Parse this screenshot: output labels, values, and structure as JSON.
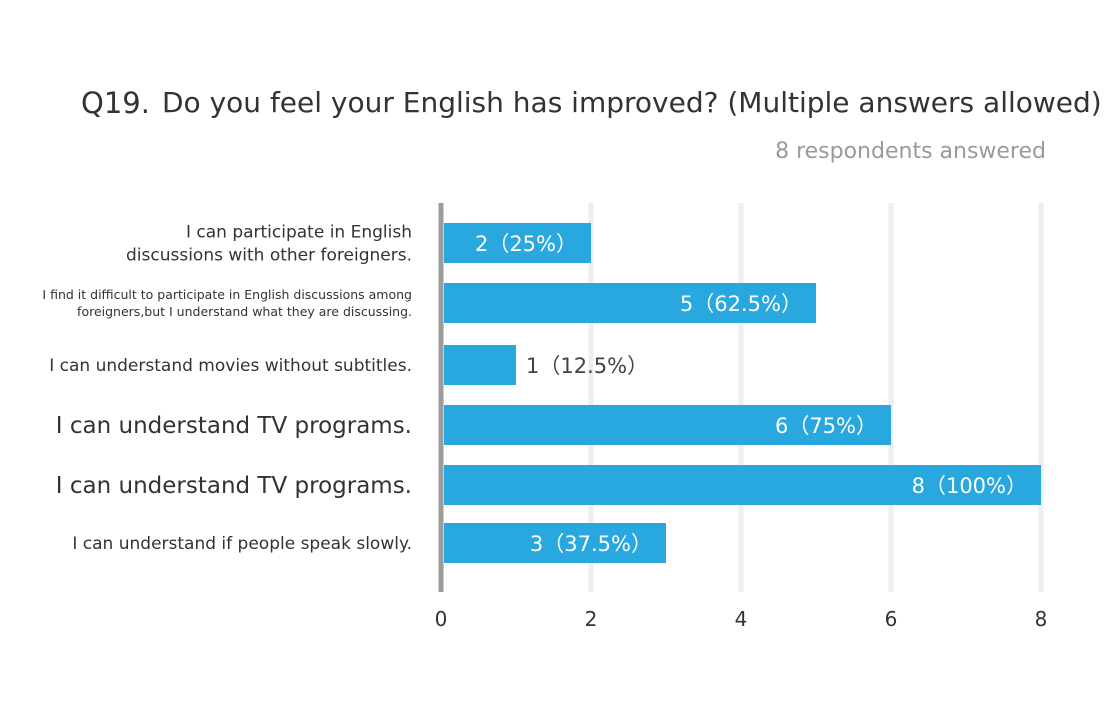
{
  "header": {
    "question_number": "Q19.",
    "question_text": "Do you feel your English has improved? (Multiple answers allowed)",
    "respondents": "8 respondents answered"
  },
  "chart_data": {
    "type": "bar",
    "orientation": "horizontal",
    "categories": [
      [
        "I can participate in English",
        "discussions with other foreigners."
      ],
      [
        "I find it difficult to participate in English discussions among",
        "foreigners,but I understand what they are discussing."
      ],
      [
        "I can understand movies without subtitles."
      ],
      [
        "I can understand TV programs."
      ],
      [
        "I can understand TV programs."
      ],
      [
        "I can understand if people speak slowly."
      ]
    ],
    "values": [
      2,
      5,
      1,
      6,
      8,
      3
    ],
    "percent_labels": [
      "2（25%）",
      "5（62.5%）",
      "1（12.5%）",
      "6（75%）",
      "8（100%）",
      "3（37.5%）"
    ],
    "xlim": [
      0,
      8
    ],
    "xticks": [
      "0",
      "2",
      "4",
      "6",
      "8"
    ],
    "grid": true,
    "bar_color": "#29a8df",
    "grid_color": "#eeeeee",
    "axis_color": "#9c9c9c"
  }
}
